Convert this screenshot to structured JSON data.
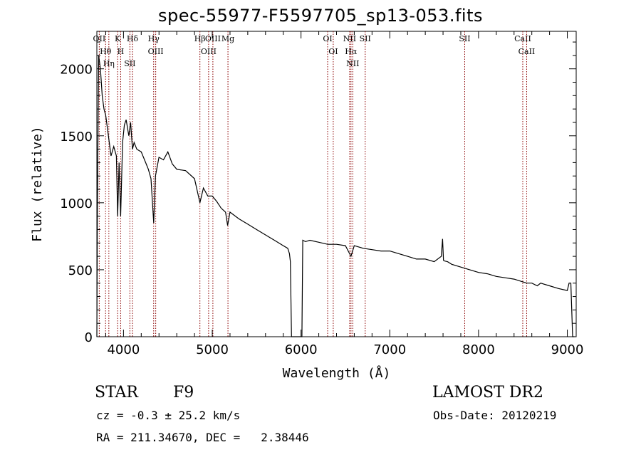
{
  "chart_data": {
    "type": "line",
    "title": "spec-55977-F5597705_sp13-053.fits",
    "xlabel": "Wavelength (Å)",
    "ylabel": "Flux (relative)",
    "xlim": [
      3700,
      9100
    ],
    "ylim": [
      0,
      2280
    ],
    "xticks": [
      4000,
      5000,
      6000,
      7000,
      8000,
      9000
    ],
    "yticks": [
      0,
      500,
      1000,
      1500,
      2000
    ],
    "grid": false,
    "series": [
      {
        "x": [
          3700,
          3705,
          3720,
          3740,
          3760,
          3780,
          3800,
          3830,
          3860,
          3890,
          3920,
          3934,
          3950,
          3968,
          3990,
          4010,
          4030,
          4060,
          4080,
          4101,
          4120,
          4150,
          4200,
          4250,
          4280,
          4310,
          4340,
          4360,
          4400,
          4450,
          4500,
          4550,
          4600,
          4700,
          4800,
          4861,
          4900,
          4950,
          5000,
          5050,
          5100,
          5150,
          5173,
          5200,
          5300,
          5400,
          5500,
          5600,
          5700,
          5800,
          5850,
          5870,
          5880,
          5893,
          5905,
          5920,
          5940,
          6000,
          6010,
          6020,
          6050,
          6100,
          6200,
          6300,
          6400,
          6500,
          6563,
          6600,
          6700,
          6800,
          6900,
          7000,
          7100,
          7200,
          7300,
          7400,
          7500,
          7580,
          7595,
          7605,
          7620,
          7650,
          7700,
          7800,
          7900,
          8000,
          8100,
          8200,
          8300,
          8400,
          8498,
          8542,
          8600,
          8662,
          8700,
          8800,
          8900,
          9000,
          9020,
          9040,
          9060,
          9080
        ],
        "y": [
          0,
          860,
          2100,
          2000,
          1800,
          1700,
          1650,
          1500,
          1350,
          1420,
          1350,
          900,
          1300,
          900,
          1450,
          1580,
          1620,
          1500,
          1600,
          1400,
          1450,
          1400,
          1380,
          1300,
          1250,
          1180,
          850,
          1200,
          1340,
          1320,
          1380,
          1290,
          1250,
          1240,
          1180,
          1000,
          1110,
          1050,
          1050,
          1010,
          960,
          930,
          830,
          930,
          880,
          840,
          800,
          760,
          720,
          680,
          660,
          620,
          560,
          0,
          0,
          0,
          0,
          0,
          0,
          720,
          710,
          720,
          705,
          690,
          690,
          680,
          600,
          680,
          660,
          650,
          640,
          640,
          620,
          600,
          580,
          580,
          560,
          600,
          730,
          570,
          565,
          560,
          540,
          520,
          500,
          480,
          470,
          450,
          440,
          430,
          410,
          400,
          400,
          380,
          400,
          380,
          360,
          345,
          400,
          400,
          0,
          0
        ]
      }
    ],
    "lines": [
      {
        "label": "OII",
        "x": 3727
      },
      {
        "label": "Hθ",
        "x": 3798
      },
      {
        "label": "Hη",
        "x": 3835
      },
      {
        "label": "K",
        "x": 3934
      },
      {
        "label": "H",
        "x": 3968
      },
      {
        "label": "SII",
        "x": 4072
      },
      {
        "label": "Hδ",
        "x": 4101
      },
      {
        "label": "Hγ",
        "x": 4340
      },
      {
        "label": "OIII",
        "x": 4363
      },
      {
        "label": "Hβ",
        "x": 4861
      },
      {
        "label": "OIII",
        "x": 4959
      },
      {
        "label": "OIII",
        "x": 5007
      },
      {
        "label": "Mg",
        "x": 5177
      },
      {
        "label": "OI",
        "x": 6300
      },
      {
        "label": "OI",
        "x": 6363
      },
      {
        "label": "NII",
        "x": 6548
      },
      {
        "label": "Hα",
        "x": 6563
      },
      {
        "label": "NII",
        "x": 6583
      },
      {
        "label": "SII",
        "x": 6723
      },
      {
        "label": "SII",
        "x": 7844
      },
      {
        "label": "CaII",
        "x": 8498
      },
      {
        "label": "CaII",
        "x": 8542
      }
    ],
    "line_color": "#000000",
    "marker_color": "#8b0000"
  },
  "info": {
    "object_class": "STAR",
    "subclass": "F9",
    "survey": "LAMOST DR2",
    "velocity": "cz = -0.3 ± 25.2 km/s",
    "obs_date": "Obs-Date: 20120219",
    "coords": "RA = 211.34670, DEC =   2.38446"
  }
}
